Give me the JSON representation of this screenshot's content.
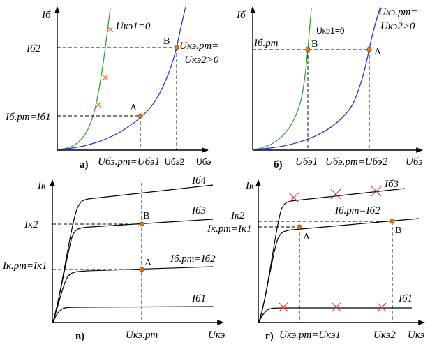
{
  "panel_a": {
    "letter": "а)",
    "y_axis": "Iб",
    "x_axis": "Uбэ",
    "curve_green": "Uкэ1=0",
    "curve_blue_1": "Uкэ.рт=",
    "curve_blue_2": "Uкэ2>0",
    "y_tick_top": "Iб2",
    "y_tick_low": "Iб.рт=Iб1",
    "x_tick_1": "Uбэ.рт=Uбэ1",
    "x_tick_2": "Uбэ2",
    "point_a": "A",
    "point_b": "B"
  },
  "panel_b": {
    "letter": "б)",
    "y_axis": "Iб",
    "x_axis": "Uбэ",
    "curve_green": "Uкэ1=0",
    "curve_blue_1": "Uкэ.рт=",
    "curve_blue_2": "Uкэ2>0",
    "y_tick": "Iб.рт",
    "x_tick_1": "Uбэ1",
    "x_tick_2": "Uбэ.рт=Uбэ2",
    "point_a": "A",
    "point_b": "B"
  },
  "panel_c": {
    "letter": "в)",
    "y_axis": "Iк",
    "x_axis": "Uкэ",
    "curve_1": "Iб4",
    "curve_2": "Iб3",
    "curve_3": "Iб.рт=Iб2",
    "curve_4": "Iб1",
    "y_tick_top": "Iк2",
    "y_tick_low": "Iк.рт=Iк1",
    "x_tick": "Uкэ.рт",
    "point_a": "A",
    "point_b": "B"
  },
  "panel_d": {
    "letter": "г)",
    "y_axis": "Iк",
    "x_axis": "Uкэ",
    "curve_1": "Iб3",
    "curve_2": "Iб.рт=Iб2",
    "curve_3": "Iб1",
    "y_tick_top": "Iк2",
    "y_tick_low": "Iк.рт=Iк1",
    "x_tick_1": "Uкэ.рт=Uкэ1",
    "x_tick_2": "Uкэ2",
    "point_a": "A",
    "point_b": "B"
  },
  "colors": {
    "green": "#2a9a2a",
    "blue": "#2222dd",
    "marker": "#e07a10",
    "cross_a": "#e07030",
    "cross_d": "#e03030"
  }
}
